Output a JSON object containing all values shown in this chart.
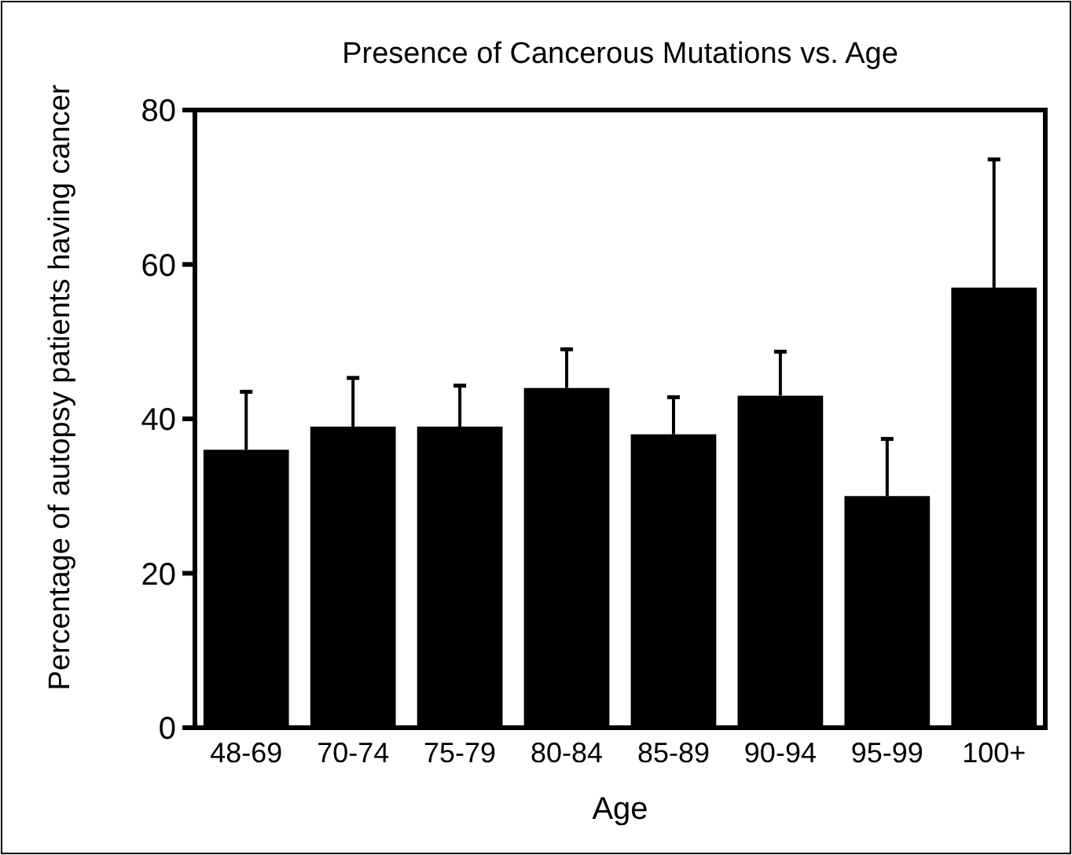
{
  "chart_data": {
    "type": "bar",
    "title": "Presence of Cancerous Mutations vs. Age",
    "xlabel": "Age",
    "ylabel": "Percentage of autopsy patients having cancer",
    "categories": [
      "48-69",
      "70-74",
      "75-79",
      "80-84",
      "85-89",
      "90-94",
      "95-99",
      "100+"
    ],
    "values": [
      36,
      39,
      39,
      44,
      38,
      43,
      30,
      57
    ],
    "errors": [
      [
        36,
        43.5
      ],
      [
        39,
        45.3
      ],
      [
        39,
        44.3
      ],
      [
        44,
        49
      ],
      [
        38,
        42.8
      ],
      [
        43,
        48.7
      ],
      [
        30,
        37.4
      ],
      [
        57,
        73.6
      ]
    ],
    "color": "#000000",
    "ylim": [
      0,
      80
    ],
    "yticks": [
      0,
      20,
      40,
      60,
      80
    ],
    "grid": false
  }
}
